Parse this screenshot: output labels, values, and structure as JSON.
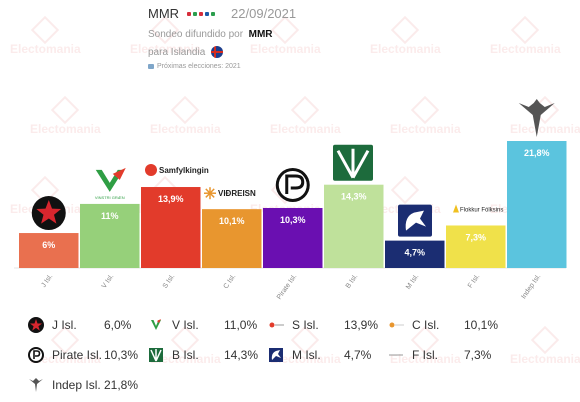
{
  "header": {
    "pollster": "MMR",
    "date": "22/09/2021",
    "sub_prefix": "Sondeo difundido por",
    "sub_source": "MMR",
    "region": "para Islandia",
    "next_elections": "Próximas elecciones: 2021"
  },
  "watermark_text": "Electomania",
  "colors": {
    "J Isl.": "#e9704f",
    "V Isl.": "#96d07a",
    "S Isl.": "#e23b2b",
    "C Isl.": "#e8962f",
    "Pirate Isl.": "#6a0fb1",
    "B Isl.": "#bfe19b",
    "M Isl.": "#1b2d72",
    "F Isl.": "#f0e14a",
    "Indep Isl.": "#5bc4de"
  },
  "chart_data": {
    "type": "bar",
    "categories": [
      "J Isl.",
      "V Isl.",
      "S Isl.",
      "C Isl.",
      "Pirate Isl.",
      "B Isl.",
      "M Isl.",
      "F Isl.",
      "Indep Isl."
    ],
    "values": [
      6.0,
      11.0,
      13.9,
      10.1,
      10.3,
      14.3,
      4.7,
      7.3,
      21.8
    ],
    "labels": [
      "6%",
      "11%",
      "13,9%",
      "10,1%",
      "10,3%",
      "14,3%",
      "4,7%",
      "7,3%",
      "21,8%"
    ],
    "ylim": [
      0,
      22
    ],
    "grid": false,
    "legend_position": "bottom",
    "logo_texts": [
      "VINSTRI GRÆN",
      "Samfylkingin",
      "VIÐREISN",
      "Flokkur Fólksins"
    ]
  },
  "legend": [
    {
      "name": "J Isl.",
      "value": "6,0%",
      "icon": "red-star-icon"
    },
    {
      "name": "V Isl.",
      "value": "11,0%",
      "icon": "left-green-logo-icon"
    },
    {
      "name": "S Isl.",
      "value": "13,9%",
      "icon": "social-democratic-logo-icon"
    },
    {
      "name": "C Isl.",
      "value": "10,1%",
      "icon": "reform-logo-icon"
    },
    {
      "name": "Pirate Isl.",
      "value": "10,3%",
      "icon": "pirate-flag-icon"
    },
    {
      "name": "B Isl.",
      "value": "14,3%",
      "icon": "progressive-logo-icon"
    },
    {
      "name": "M Isl.",
      "value": "4,7%",
      "icon": "centre-horse-icon"
    },
    {
      "name": "F Isl.",
      "value": "7,3%",
      "icon": "peoples-party-logo-icon"
    },
    {
      "name": "Indep Isl.",
      "value": "21,8%",
      "icon": "eagle-icon"
    }
  ]
}
